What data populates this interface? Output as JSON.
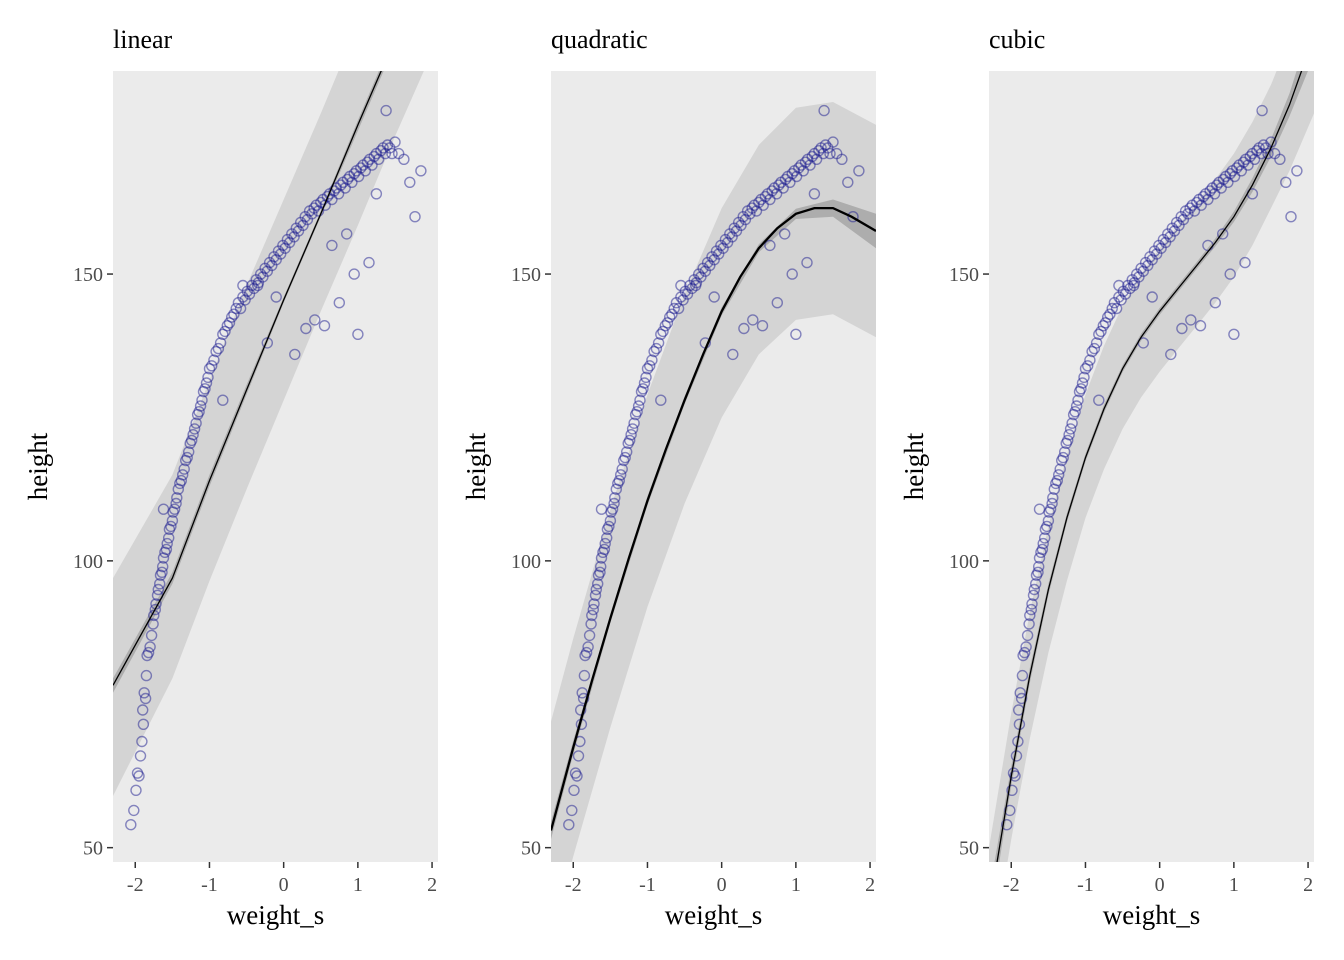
{
  "chart_data": [
    {
      "type": "scatter",
      "title": "linear",
      "xlabel": "weight_s",
      "ylabel": "height",
      "xlim": [
        -2.3,
        2.08
      ],
      "ylim": [
        47.5,
        185.4
      ],
      "xticks": [
        -2,
        -1,
        0,
        1,
        2
      ],
      "xtick_labels": [
        "-2",
        "-1",
        "0",
        "1",
        "2"
      ],
      "yticks": [
        50,
        100,
        150
      ],
      "ytick_labels": [
        "50",
        "100",
        "150"
      ],
      "grid": false,
      "fit_curve": {
        "x": [
          -2.3,
          -1.5,
          -1.0,
          -0.5,
          0.0,
          0.5,
          1.0,
          1.5,
          1.78
        ],
        "y": [
          78.3,
          97.0,
          114.0,
          129.8,
          145.5,
          160.5,
          176.0,
          191.0,
          199.5
        ]
      },
      "pi_band": {
        "x": [
          -2.3,
          -1.5,
          -1.0,
          -0.5,
          0.0,
          0.5,
          1.0,
          1.5,
          2.08
        ],
        "lower": [
          59.0,
          79.5,
          96.5,
          112.5,
          128.0,
          143.5,
          158.5,
          174.0,
          191.0
        ],
        "upper": [
          97.0,
          115.0,
          131.5,
          148.0,
          163.0,
          178.0,
          193.5,
          208.0,
          226.0
        ]
      },
      "ci_band": {
        "x": [
          -2.3,
          -1.5,
          -1.0,
          -0.5,
          0.0,
          0.5,
          1.0,
          1.5,
          1.8
        ],
        "lower": [
          77.0,
          96.0,
          113.0,
          129.0,
          145.0,
          160.0,
          175.0,
          190.0,
          198.0
        ],
        "upper": [
          79.5,
          98.0,
          115.0,
          130.7,
          146.0,
          161.0,
          176.8,
          192.0,
          201.0
        ]
      }
    },
    {
      "type": "scatter",
      "title": "quadratic",
      "xlabel": "weight_s",
      "ylabel": "height",
      "xlim": [
        -2.3,
        2.08
      ],
      "ylim": [
        47.5,
        185.4
      ],
      "xticks": [
        -2,
        -1,
        0,
        1,
        2
      ],
      "xtick_labels": [
        "-2",
        "-1",
        "0",
        "1",
        "2"
      ],
      "yticks": [
        50,
        100,
        150
      ],
      "ytick_labels": [
        "50",
        "100",
        "150"
      ],
      "grid": false,
      "fit_curve": {
        "x": [
          -2.3,
          -2.0,
          -1.75,
          -1.5,
          -1.25,
          -1.0,
          -0.75,
          -0.5,
          -0.25,
          0.0,
          0.25,
          0.5,
          0.75,
          1.0,
          1.25,
          1.5,
          1.75,
          2.08
        ],
        "y": [
          53.0,
          67.5,
          79.0,
          90.0,
          100.5,
          110.5,
          119.5,
          128.0,
          136.0,
          143.5,
          149.5,
          154.5,
          158.0,
          160.5,
          161.5,
          161.5,
          160.0,
          157.5
        ]
      },
      "pi_band": {
        "x": [
          -2.3,
          -2.0,
          -1.5,
          -1.0,
          -0.5,
          0.0,
          0.5,
          1.0,
          1.5,
          2.08
        ],
        "lower": [
          34.0,
          48.5,
          71.0,
          92.0,
          110.0,
          125.0,
          136.0,
          142.0,
          143.0,
          139.0
        ],
        "upper": [
          72.0,
          86.5,
          109.0,
          129.0,
          146.5,
          161.5,
          172.5,
          179.0,
          180.0,
          176.0
        ]
      },
      "ci_band": {
        "x": [
          -2.3,
          -2.0,
          -1.5,
          -1.0,
          -0.5,
          0.0,
          0.5,
          1.0,
          1.5,
          2.08
        ],
        "lower": [
          51.5,
          66.3,
          89.2,
          109.7,
          127.3,
          142.8,
          153.8,
          159.6,
          160.0,
          154.5
        ],
        "upper": [
          54.5,
          68.7,
          90.8,
          111.3,
          128.7,
          144.2,
          155.2,
          161.4,
          163.0,
          160.5
        ]
      }
    },
    {
      "type": "scatter",
      "title": "cubic",
      "xlabel": "weight_s",
      "ylabel": "height",
      "xlim": [
        -2.3,
        2.08
      ],
      "ylim": [
        47.5,
        185.4
      ],
      "xticks": [
        -2,
        -1,
        0,
        1,
        2
      ],
      "xtick_labels": [
        "-2",
        "-1",
        "0",
        "1",
        "2"
      ],
      "yticks": [
        50,
        100,
        150
      ],
      "ytick_labels": [
        "50",
        "100",
        "150"
      ],
      "grid": false,
      "fit_curve": {
        "x": [
          -2.3,
          -2.0,
          -1.75,
          -1.5,
          -1.25,
          -1.0,
          -0.75,
          -0.5,
          -0.25,
          0.0,
          0.25,
          0.5,
          0.75,
          1.0,
          1.25,
          1.5,
          1.75,
          2.08
        ],
        "y": [
          39.0,
          62.5,
          80.0,
          95.0,
          107.5,
          118.0,
          126.5,
          133.5,
          139.0,
          143.5,
          147.5,
          151.5,
          155.5,
          160.0,
          165.5,
          172.0,
          179.5,
          191.5
        ]
      },
      "pi_band": {
        "x": [
          -2.3,
          -2.0,
          -1.75,
          -1.5,
          -1.25,
          -1.0,
          -0.75,
          -0.5,
          -0.25,
          0.0,
          0.25,
          0.5,
          0.75,
          1.0,
          1.25,
          1.5,
          1.75,
          2.08
        ],
        "lower": [
          28.0,
          51.5,
          69.0,
          84.0,
          96.5,
          107.5,
          116.0,
          123.0,
          128.5,
          133.0,
          137.0,
          141.0,
          145.0,
          149.5,
          155.0,
          161.5,
          168.0,
          178.0
        ],
        "upper": [
          50.0,
          73.5,
          91.0,
          106.0,
          118.5,
          129.0,
          137.5,
          144.5,
          150.0,
          154.5,
          158.5,
          162.5,
          166.5,
          171.0,
          176.5,
          183.0,
          191.0,
          205.0
        ]
      },
      "ci_band": {
        "x": [
          -2.3,
          -2.0,
          -1.75,
          -1.5,
          -1.25,
          -1.0,
          -0.75,
          -0.5,
          -0.25,
          0.0,
          0.25,
          0.5,
          0.75,
          1.0,
          1.25,
          1.5,
          1.75,
          2.08
        ],
        "lower": [
          36.0,
          60.8,
          78.7,
          94.0,
          106.7,
          117.3,
          125.8,
          132.9,
          138.4,
          142.9,
          146.9,
          150.9,
          154.8,
          159.1,
          164.3,
          170.5,
          177.5,
          188.0
        ],
        "upper": [
          42.0,
          64.2,
          81.3,
          96.0,
          108.3,
          118.7,
          127.2,
          134.1,
          139.6,
          144.1,
          148.1,
          152.1,
          156.2,
          160.9,
          166.7,
          173.5,
          181.5,
          195.0
        ]
      }
    }
  ],
  "observations": {
    "x": [
      -2.06,
      -2.02,
      -1.99,
      -1.97,
      -1.95,
      -1.93,
      -1.91,
      -1.89,
      -1.9,
      -1.88,
      -1.86,
      -1.85,
      -1.84,
      -1.82,
      -1.8,
      -1.78,
      -1.76,
      -1.75,
      -1.73,
      -1.72,
      -1.7,
      -1.69,
      -1.67,
      -1.66,
      -1.64,
      -1.63,
      -1.62,
      -1.6,
      -1.58,
      -1.57,
      -1.55,
      -1.54,
      -1.52,
      -1.5,
      -1.49,
      -1.47,
      -1.45,
      -1.44,
      -1.42,
      -1.4,
      -1.38,
      -1.36,
      -1.34,
      -1.32,
      -1.3,
      -1.28,
      -1.26,
      -1.24,
      -1.22,
      -1.2,
      -1.18,
      -1.16,
      -1.14,
      -1.12,
      -1.1,
      -1.08,
      -1.06,
      -1.04,
      -1.02,
      -1.0,
      -0.97,
      -0.94,
      -0.91,
      -0.88,
      -0.85,
      -0.82,
      -0.79,
      -0.76,
      -0.73,
      -0.7,
      -0.67,
      -0.64,
      -0.61,
      -0.58,
      -0.55,
      -0.52,
      -0.49,
      -0.46,
      -0.43,
      -0.4,
      -0.37,
      -0.34,
      -0.31,
      -0.28,
      -0.25,
      -0.22,
      -0.19,
      -0.16,
      -0.13,
      -0.1,
      -0.07,
      -0.04,
      -0.01,
      0.02,
      0.05,
      0.08,
      0.11,
      0.14,
      0.17,
      0.2,
      0.23,
      0.26,
      0.29,
      0.32,
      0.35,
      0.38,
      0.41,
      0.44,
      0.47,
      0.5,
      0.53,
      0.56,
      0.59,
      0.62,
      0.65,
      0.68,
      0.71,
      0.74,
      0.77,
      0.8,
      0.83,
      0.86,
      0.89,
      0.92,
      0.95,
      0.98,
      1.01,
      1.04,
      1.07,
      1.1,
      1.13,
      1.16,
      1.19,
      1.22,
      1.25,
      1.28,
      1.31,
      1.34,
      1.37,
      1.4,
      1.43,
      1.46,
      1.5,
      1.55,
      1.62,
      1.7,
      1.77,
      1.85,
      1.38,
      1.0,
      0.55,
      -0.22,
      -0.55,
      -1.62,
      -0.82,
      0.15,
      0.42,
      0.75,
      1.15,
      0.95,
      0.3,
      -0.1,
      -0.35,
      0.65,
      0.85,
      1.25
    ],
    "y": [
      54.0,
      56.5,
      60.0,
      63.0,
      62.5,
      66.0,
      68.5,
      71.5,
      74.0,
      77.0,
      76.0,
      80.0,
      83.5,
      84.0,
      85.0,
      87.0,
      89.0,
      90.5,
      91.5,
      92.5,
      94.0,
      95.0,
      96.0,
      97.5,
      98.0,
      99.0,
      100.5,
      101.5,
      102.0,
      103.0,
      104.0,
      105.5,
      106.0,
      107.0,
      108.5,
      109.0,
      110.0,
      111.0,
      112.5,
      113.5,
      114.0,
      115.0,
      116.0,
      117.5,
      118.0,
      119.0,
      120.5,
      121.0,
      122.0,
      123.0,
      124.0,
      125.5,
      126.0,
      127.0,
      128.0,
      129.5,
      130.0,
      131.0,
      132.0,
      133.5,
      134.0,
      135.0,
      136.5,
      137.0,
      138.0,
      139.5,
      140.0,
      141.0,
      141.5,
      142.5,
      143.0,
      144.0,
      145.0,
      144.0,
      146.0,
      145.5,
      147.0,
      146.5,
      148.0,
      147.5,
      149.0,
      148.5,
      150.0,
      149.5,
      151.0,
      150.5,
      152.0,
      151.5,
      153.0,
      152.5,
      154.0,
      153.5,
      155.0,
      154.5,
      156.0,
      155.5,
      157.0,
      156.5,
      158.0,
      157.5,
      159.0,
      158.5,
      160.0,
      159.5,
      161.0,
      160.5,
      161.5,
      162.0,
      161.0,
      162.5,
      163.0,
      162.0,
      163.5,
      164.0,
      163.0,
      164.5,
      165.0,
      164.0,
      165.5,
      166.0,
      165.0,
      166.5,
      167.0,
      166.0,
      167.5,
      168.0,
      167.0,
      168.5,
      169.0,
      168.0,
      169.5,
      170.0,
      169.0,
      170.5,
      171.0,
      170.0,
      171.5,
      172.0,
      171.0,
      172.5,
      172.0,
      171.0,
      173.0,
      171.0,
      170.0,
      166.0,
      160.0,
      168.0,
      178.5,
      139.5,
      141.0,
      138.0,
      148.0,
      109.0,
      128.0,
      136.0,
      142.0,
      145.0,
      152.0,
      150.0,
      140.5,
      146.0,
      148.0,
      155.0,
      157.0,
      164.0
    ]
  }
}
